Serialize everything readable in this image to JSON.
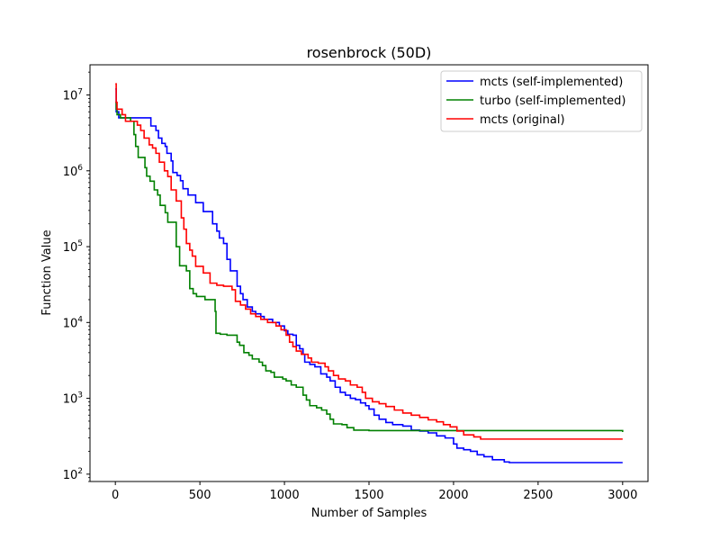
{
  "chart_data": {
    "type": "line",
    "title": "rosenbrock (50D)",
    "xlabel": "Number of Samples",
    "ylabel": "Function Value",
    "yscale": "log",
    "xlim": [
      -150,
      3150
    ],
    "ylim": [
      80,
      25000000
    ],
    "xticks": [
      0,
      500,
      1000,
      1500,
      2000,
      2500,
      3000
    ],
    "xtick_labels": [
      "0",
      "500",
      "1000",
      "1500",
      "2000",
      "2500",
      "3000"
    ],
    "ytick_labels": [
      {
        "base": "10",
        "exp": "2"
      },
      {
        "base": "10",
        "exp": "3"
      },
      {
        "base": "10",
        "exp": "4"
      },
      {
        "base": "10",
        "exp": "5"
      },
      {
        "base": "10",
        "exp": "6"
      },
      {
        "base": "10",
        "exp": "7"
      }
    ],
    "ytick_values": [
      100,
      1000,
      10000,
      100000,
      1000000,
      10000000
    ],
    "grid": false,
    "legend_position": "top-right",
    "series": [
      {
        "name": "mcts (self-implemented)",
        "color": "#0000ff",
        "step": true,
        "points": [
          [
            0,
            12000000
          ],
          [
            5,
            6000000
          ],
          [
            20,
            5000000
          ],
          [
            205,
            5000000
          ],
          [
            210,
            3900000
          ],
          [
            240,
            3400000
          ],
          [
            255,
            2700000
          ],
          [
            275,
            2300000
          ],
          [
            295,
            2100000
          ],
          [
            305,
            1700000
          ],
          [
            330,
            1350000
          ],
          [
            340,
            950000
          ],
          [
            365,
            870000
          ],
          [
            385,
            740000
          ],
          [
            400,
            580000
          ],
          [
            430,
            480000
          ],
          [
            460,
            480000
          ],
          [
            475,
            380000
          ],
          [
            500,
            380000
          ],
          [
            520,
            290000
          ],
          [
            560,
            290000
          ],
          [
            575,
            200000
          ],
          [
            600,
            160000
          ],
          [
            615,
            130000
          ],
          [
            640,
            110000
          ],
          [
            660,
            68000
          ],
          [
            680,
            48000
          ],
          [
            710,
            48000
          ],
          [
            720,
            30000
          ],
          [
            740,
            24000
          ],
          [
            755,
            20000
          ],
          [
            780,
            16000
          ],
          [
            800,
            16000
          ],
          [
            810,
            14000
          ],
          [
            830,
            13000
          ],
          [
            860,
            12000
          ],
          [
            880,
            11000
          ],
          [
            930,
            10000
          ],
          [
            970,
            9000
          ],
          [
            1000,
            7800
          ],
          [
            1020,
            7000
          ],
          [
            1050,
            6800
          ],
          [
            1070,
            5000
          ],
          [
            1090,
            4500
          ],
          [
            1110,
            3800
          ],
          [
            1120,
            3000
          ],
          [
            1150,
            2800
          ],
          [
            1180,
            2600
          ],
          [
            1200,
            2600
          ],
          [
            1215,
            2100
          ],
          [
            1250,
            1900
          ],
          [
            1270,
            1700
          ],
          [
            1300,
            1400
          ],
          [
            1330,
            1200
          ],
          [
            1360,
            1100
          ],
          [
            1390,
            1000
          ],
          [
            1420,
            960
          ],
          [
            1450,
            870
          ],
          [
            1480,
            800
          ],
          [
            1500,
            720
          ],
          [
            1530,
            600
          ],
          [
            1560,
            530
          ],
          [
            1600,
            480
          ],
          [
            1640,
            450
          ],
          [
            1700,
            430
          ],
          [
            1750,
            380
          ],
          [
            1800,
            370
          ],
          [
            1850,
            350
          ],
          [
            1900,
            320
          ],
          [
            1950,
            300
          ],
          [
            2000,
            250
          ],
          [
            2020,
            220
          ],
          [
            2060,
            210
          ],
          [
            2100,
            200
          ],
          [
            2140,
            180
          ],
          [
            2180,
            170
          ],
          [
            2230,
            155
          ],
          [
            2300,
            145
          ],
          [
            2330,
            142
          ],
          [
            3000,
            142
          ]
        ]
      },
      {
        "name": "turbo (self-implemented)",
        "color": "#008000",
        "step": true,
        "points": [
          [
            0,
            8000000
          ],
          [
            5,
            6500000
          ],
          [
            10,
            5500000
          ],
          [
            30,
            5000000
          ],
          [
            90,
            4500000
          ],
          [
            110,
            3000000
          ],
          [
            120,
            2100000
          ],
          [
            135,
            1500000
          ],
          [
            175,
            1100000
          ],
          [
            185,
            850000
          ],
          [
            205,
            730000
          ],
          [
            230,
            560000
          ],
          [
            250,
            480000
          ],
          [
            265,
            350000
          ],
          [
            295,
            280000
          ],
          [
            310,
            210000
          ],
          [
            360,
            100000
          ],
          [
            380,
            56000
          ],
          [
            420,
            48000
          ],
          [
            440,
            28000
          ],
          [
            460,
            24000
          ],
          [
            480,
            22000
          ],
          [
            530,
            20000
          ],
          [
            590,
            14000
          ],
          [
            595,
            7200
          ],
          [
            620,
            7000
          ],
          [
            660,
            6800
          ],
          [
            720,
            5500
          ],
          [
            735,
            5000
          ],
          [
            760,
            4000
          ],
          [
            790,
            3700
          ],
          [
            810,
            3300
          ],
          [
            850,
            3000
          ],
          [
            870,
            2700
          ],
          [
            890,
            2300
          ],
          [
            920,
            2200
          ],
          [
            940,
            1900
          ],
          [
            990,
            1800
          ],
          [
            1010,
            1700
          ],
          [
            1040,
            1500
          ],
          [
            1070,
            1400
          ],
          [
            1110,
            1100
          ],
          [
            1130,
            950
          ],
          [
            1150,
            800
          ],
          [
            1190,
            750
          ],
          [
            1220,
            700
          ],
          [
            1250,
            620
          ],
          [
            1270,
            530
          ],
          [
            1290,
            460
          ],
          [
            1340,
            450
          ],
          [
            1370,
            410
          ],
          [
            1410,
            380
          ],
          [
            1500,
            375
          ],
          [
            2980,
            375
          ],
          [
            3000,
            360
          ]
        ]
      },
      {
        "name": "mcts (original)",
        "color": "#ff0000",
        "step": true,
        "points": [
          [
            0,
            14000000
          ],
          [
            5,
            8000000
          ],
          [
            10,
            6500000
          ],
          [
            40,
            5500000
          ],
          [
            60,
            4500000
          ],
          [
            110,
            4500000
          ],
          [
            130,
            4000000
          ],
          [
            150,
            3400000
          ],
          [
            170,
            2700000
          ],
          [
            200,
            2200000
          ],
          [
            220,
            2000000
          ],
          [
            240,
            1700000
          ],
          [
            260,
            1300000
          ],
          [
            290,
            1000000
          ],
          [
            310,
            840000
          ],
          [
            330,
            560000
          ],
          [
            360,
            400000
          ],
          [
            390,
            240000
          ],
          [
            405,
            170000
          ],
          [
            420,
            110000
          ],
          [
            440,
            90000
          ],
          [
            455,
            75000
          ],
          [
            475,
            55000
          ],
          [
            520,
            45000
          ],
          [
            560,
            33000
          ],
          [
            600,
            31000
          ],
          [
            640,
            30000
          ],
          [
            690,
            27000
          ],
          [
            710,
            19000
          ],
          [
            740,
            17000
          ],
          [
            770,
            15000
          ],
          [
            800,
            13000
          ],
          [
            830,
            12000
          ],
          [
            860,
            11000
          ],
          [
            900,
            10000
          ],
          [
            950,
            9000
          ],
          [
            980,
            8000
          ],
          [
            1010,
            6800
          ],
          [
            1030,
            5500
          ],
          [
            1050,
            4800
          ],
          [
            1070,
            4200
          ],
          [
            1100,
            3800
          ],
          [
            1140,
            3400
          ],
          [
            1160,
            3000
          ],
          [
            1200,
            2900
          ],
          [
            1240,
            2600
          ],
          [
            1260,
            2300
          ],
          [
            1290,
            2000
          ],
          [
            1320,
            1800
          ],
          [
            1360,
            1700
          ],
          [
            1390,
            1500
          ],
          [
            1430,
            1400
          ],
          [
            1460,
            1200
          ],
          [
            1480,
            1000
          ],
          [
            1520,
            900
          ],
          [
            1560,
            850
          ],
          [
            1600,
            780
          ],
          [
            1650,
            700
          ],
          [
            1700,
            640
          ],
          [
            1750,
            600
          ],
          [
            1800,
            560
          ],
          [
            1850,
            520
          ],
          [
            1900,
            490
          ],
          [
            1940,
            450
          ],
          [
            1980,
            420
          ],
          [
            2020,
            370
          ],
          [
            2060,
            330
          ],
          [
            2120,
            310
          ],
          [
            2160,
            290
          ],
          [
            3000,
            290
          ]
        ]
      }
    ]
  }
}
